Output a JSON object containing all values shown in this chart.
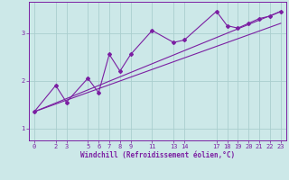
{
  "title": "",
  "xlabel": "Windchill (Refroidissement éolien,°C)",
  "ylabel": "",
  "bg_color": "#cce8e8",
  "line_color": "#7b1fa2",
  "grid_color": "#aacece",
  "xlim": [
    -0.5,
    23.5
  ],
  "ylim": [
    0.75,
    3.65
  ],
  "xticks": [
    0,
    2,
    3,
    5,
    6,
    7,
    8,
    9,
    11,
    13,
    14,
    17,
    18,
    19,
    20,
    21,
    22,
    23
  ],
  "yticks": [
    1,
    2,
    3
  ],
  "data_line": {
    "x": [
      0,
      2,
      3,
      5,
      6,
      7,
      8,
      9,
      11,
      13,
      14,
      17,
      18,
      19,
      20,
      21,
      22,
      23
    ],
    "y": [
      1.35,
      1.9,
      1.55,
      2.05,
      1.75,
      2.55,
      2.2,
      2.55,
      3.05,
      2.8,
      2.85,
      3.45,
      3.15,
      3.1,
      3.2,
      3.3,
      3.35,
      3.45
    ]
  },
  "trend_line1": {
    "x": [
      0,
      23
    ],
    "y": [
      1.35,
      3.2
    ]
  },
  "trend_line2": {
    "x": [
      0,
      23
    ],
    "y": [
      1.35,
      3.45
    ]
  }
}
